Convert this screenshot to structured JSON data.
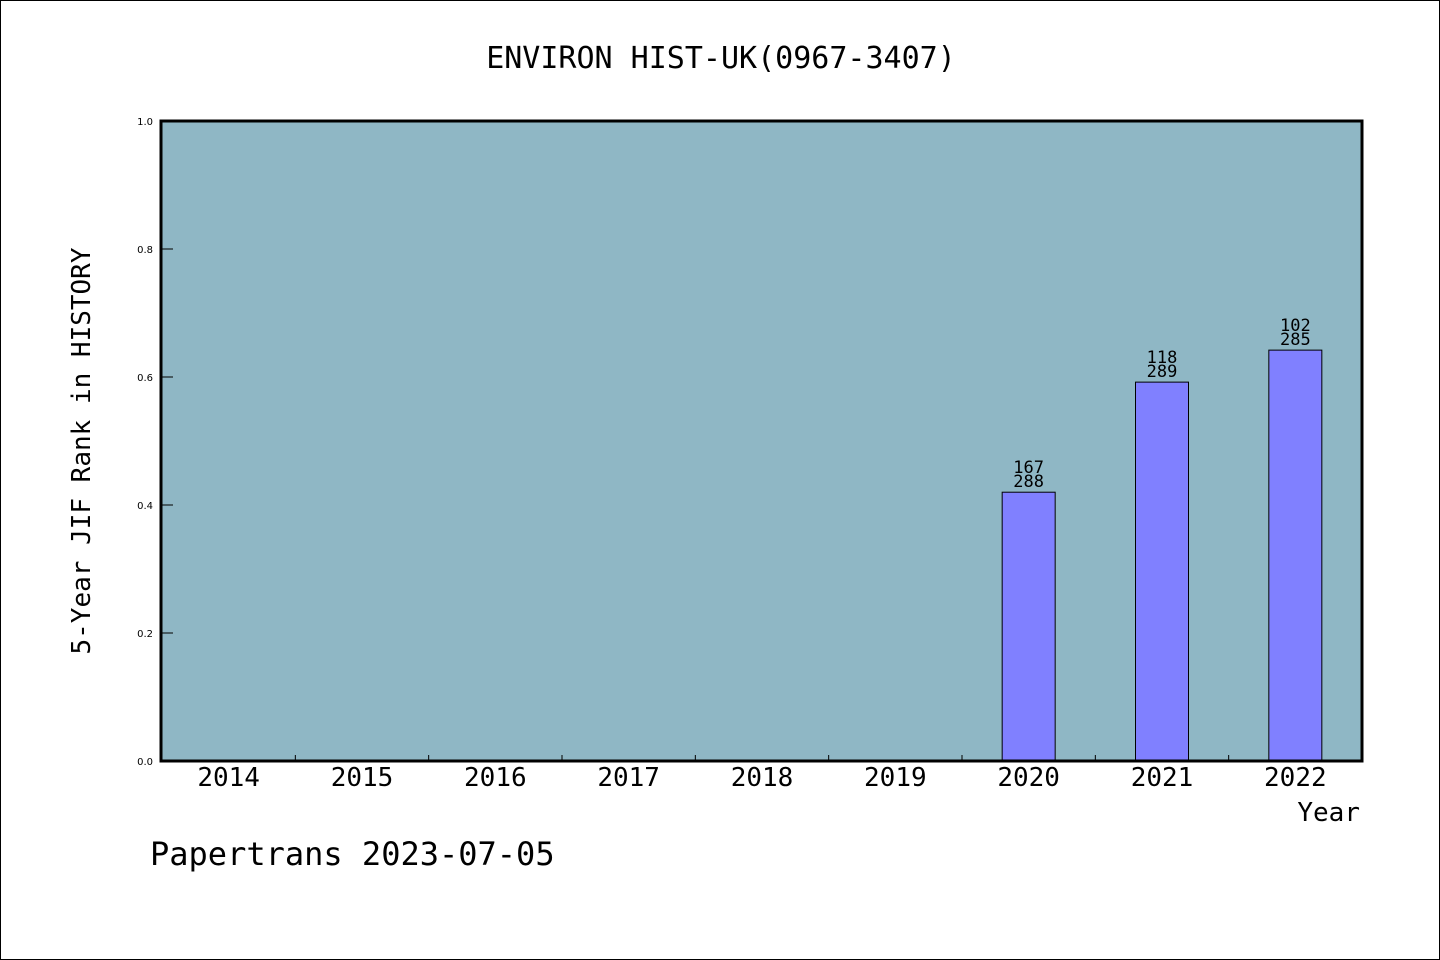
{
  "chart_data": {
    "type": "bar",
    "title": "ENVIRON HIST-UK(0967-3407)",
    "xlabel": "Year",
    "ylabel": "5-Year JIF Rank in HISTORY",
    "ylim": [
      0,
      1.0
    ],
    "yticks": [
      "0.0",
      "0.2",
      "0.4",
      "0.6",
      "0.8",
      "1.0"
    ],
    "categories": [
      "2014",
      "2015",
      "2016",
      "2017",
      "2018",
      "2019",
      "2020",
      "2021",
      "2022"
    ],
    "values": [
      null,
      null,
      null,
      null,
      null,
      null,
      0.42,
      0.592,
      0.642
    ],
    "bar_labels": [
      null,
      null,
      null,
      null,
      null,
      null,
      {
        "rank": "167",
        "total": "288"
      },
      {
        "rank": "118",
        "total": "289"
      },
      {
        "rank": "102",
        "total": "285"
      }
    ],
    "grid": false,
    "colors": {
      "plot_background": "#8fb7c5",
      "bar_fill": "#8080ff",
      "axis": "#000000"
    }
  },
  "footer": "Papertrans 2023-07-05"
}
